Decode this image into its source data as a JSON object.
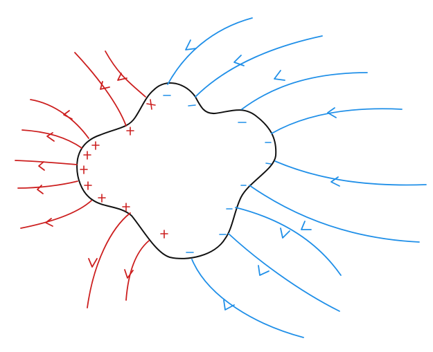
{
  "colors": {
    "positive": "#cc1e1e",
    "negative": "#1f8fe8",
    "conductor": "#111111",
    "background": "#ffffff"
  },
  "shapes": {
    "conductor": "irregular-closed-blob",
    "field_lines": "curved-arrows"
  },
  "counts": {
    "red_field_lines": 11,
    "blue_field_lines": 13,
    "plus_charges": 10,
    "minus_charges": 10
  }
}
